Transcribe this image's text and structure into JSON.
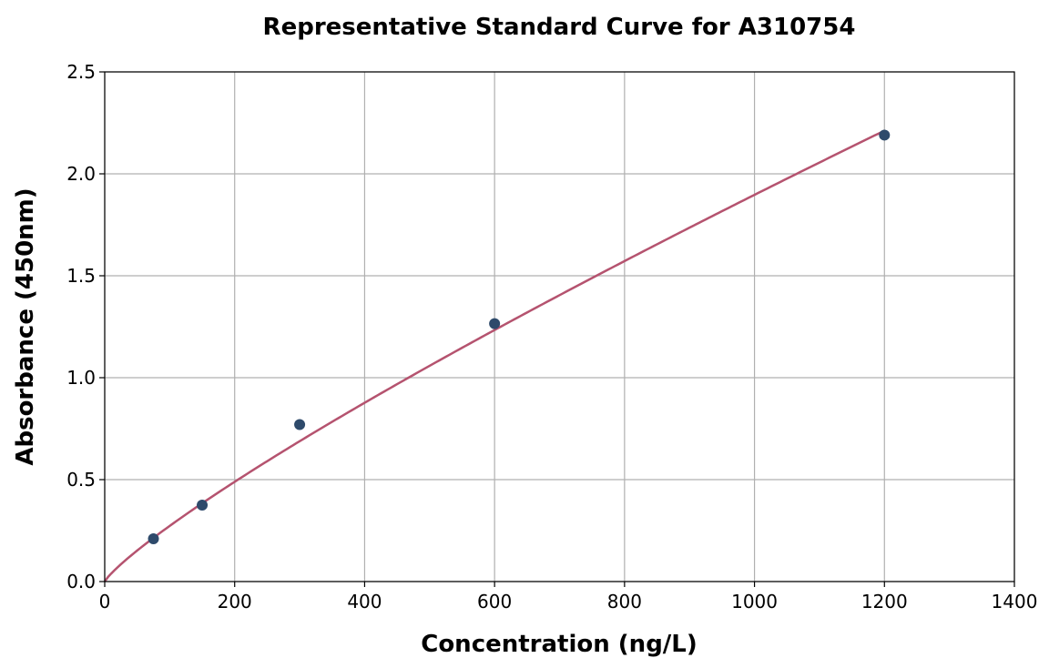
{
  "chart_data": {
    "type": "scatter",
    "title": "Representative Standard Curve for A310754",
    "xlabel": "Concentration (ng/L)",
    "ylabel": "Absorbance (450nm)",
    "xlim": [
      0,
      1400
    ],
    "ylim": [
      0,
      2.5
    ],
    "xticks": [
      "0",
      "200",
      "400",
      "600",
      "800",
      "1000",
      "1200",
      "1400"
    ],
    "yticks": [
      "0.0",
      "0.5",
      "1.0",
      "1.5",
      "2.0",
      "2.5"
    ],
    "grid": true,
    "series": [
      {
        "type": "scatter",
        "color": "#2e4a6b",
        "x": [
          75,
          150,
          300,
          600,
          1200
        ],
        "y": [
          0.21,
          0.375,
          0.77,
          1.265,
          2.19
        ]
      },
      {
        "type": "line",
        "color": "#b5536f",
        "fit": {
          "form": "power",
          "a": 0.00565,
          "b": 0.842
        },
        "x_range": [
          0,
          1200
        ]
      }
    ]
  }
}
